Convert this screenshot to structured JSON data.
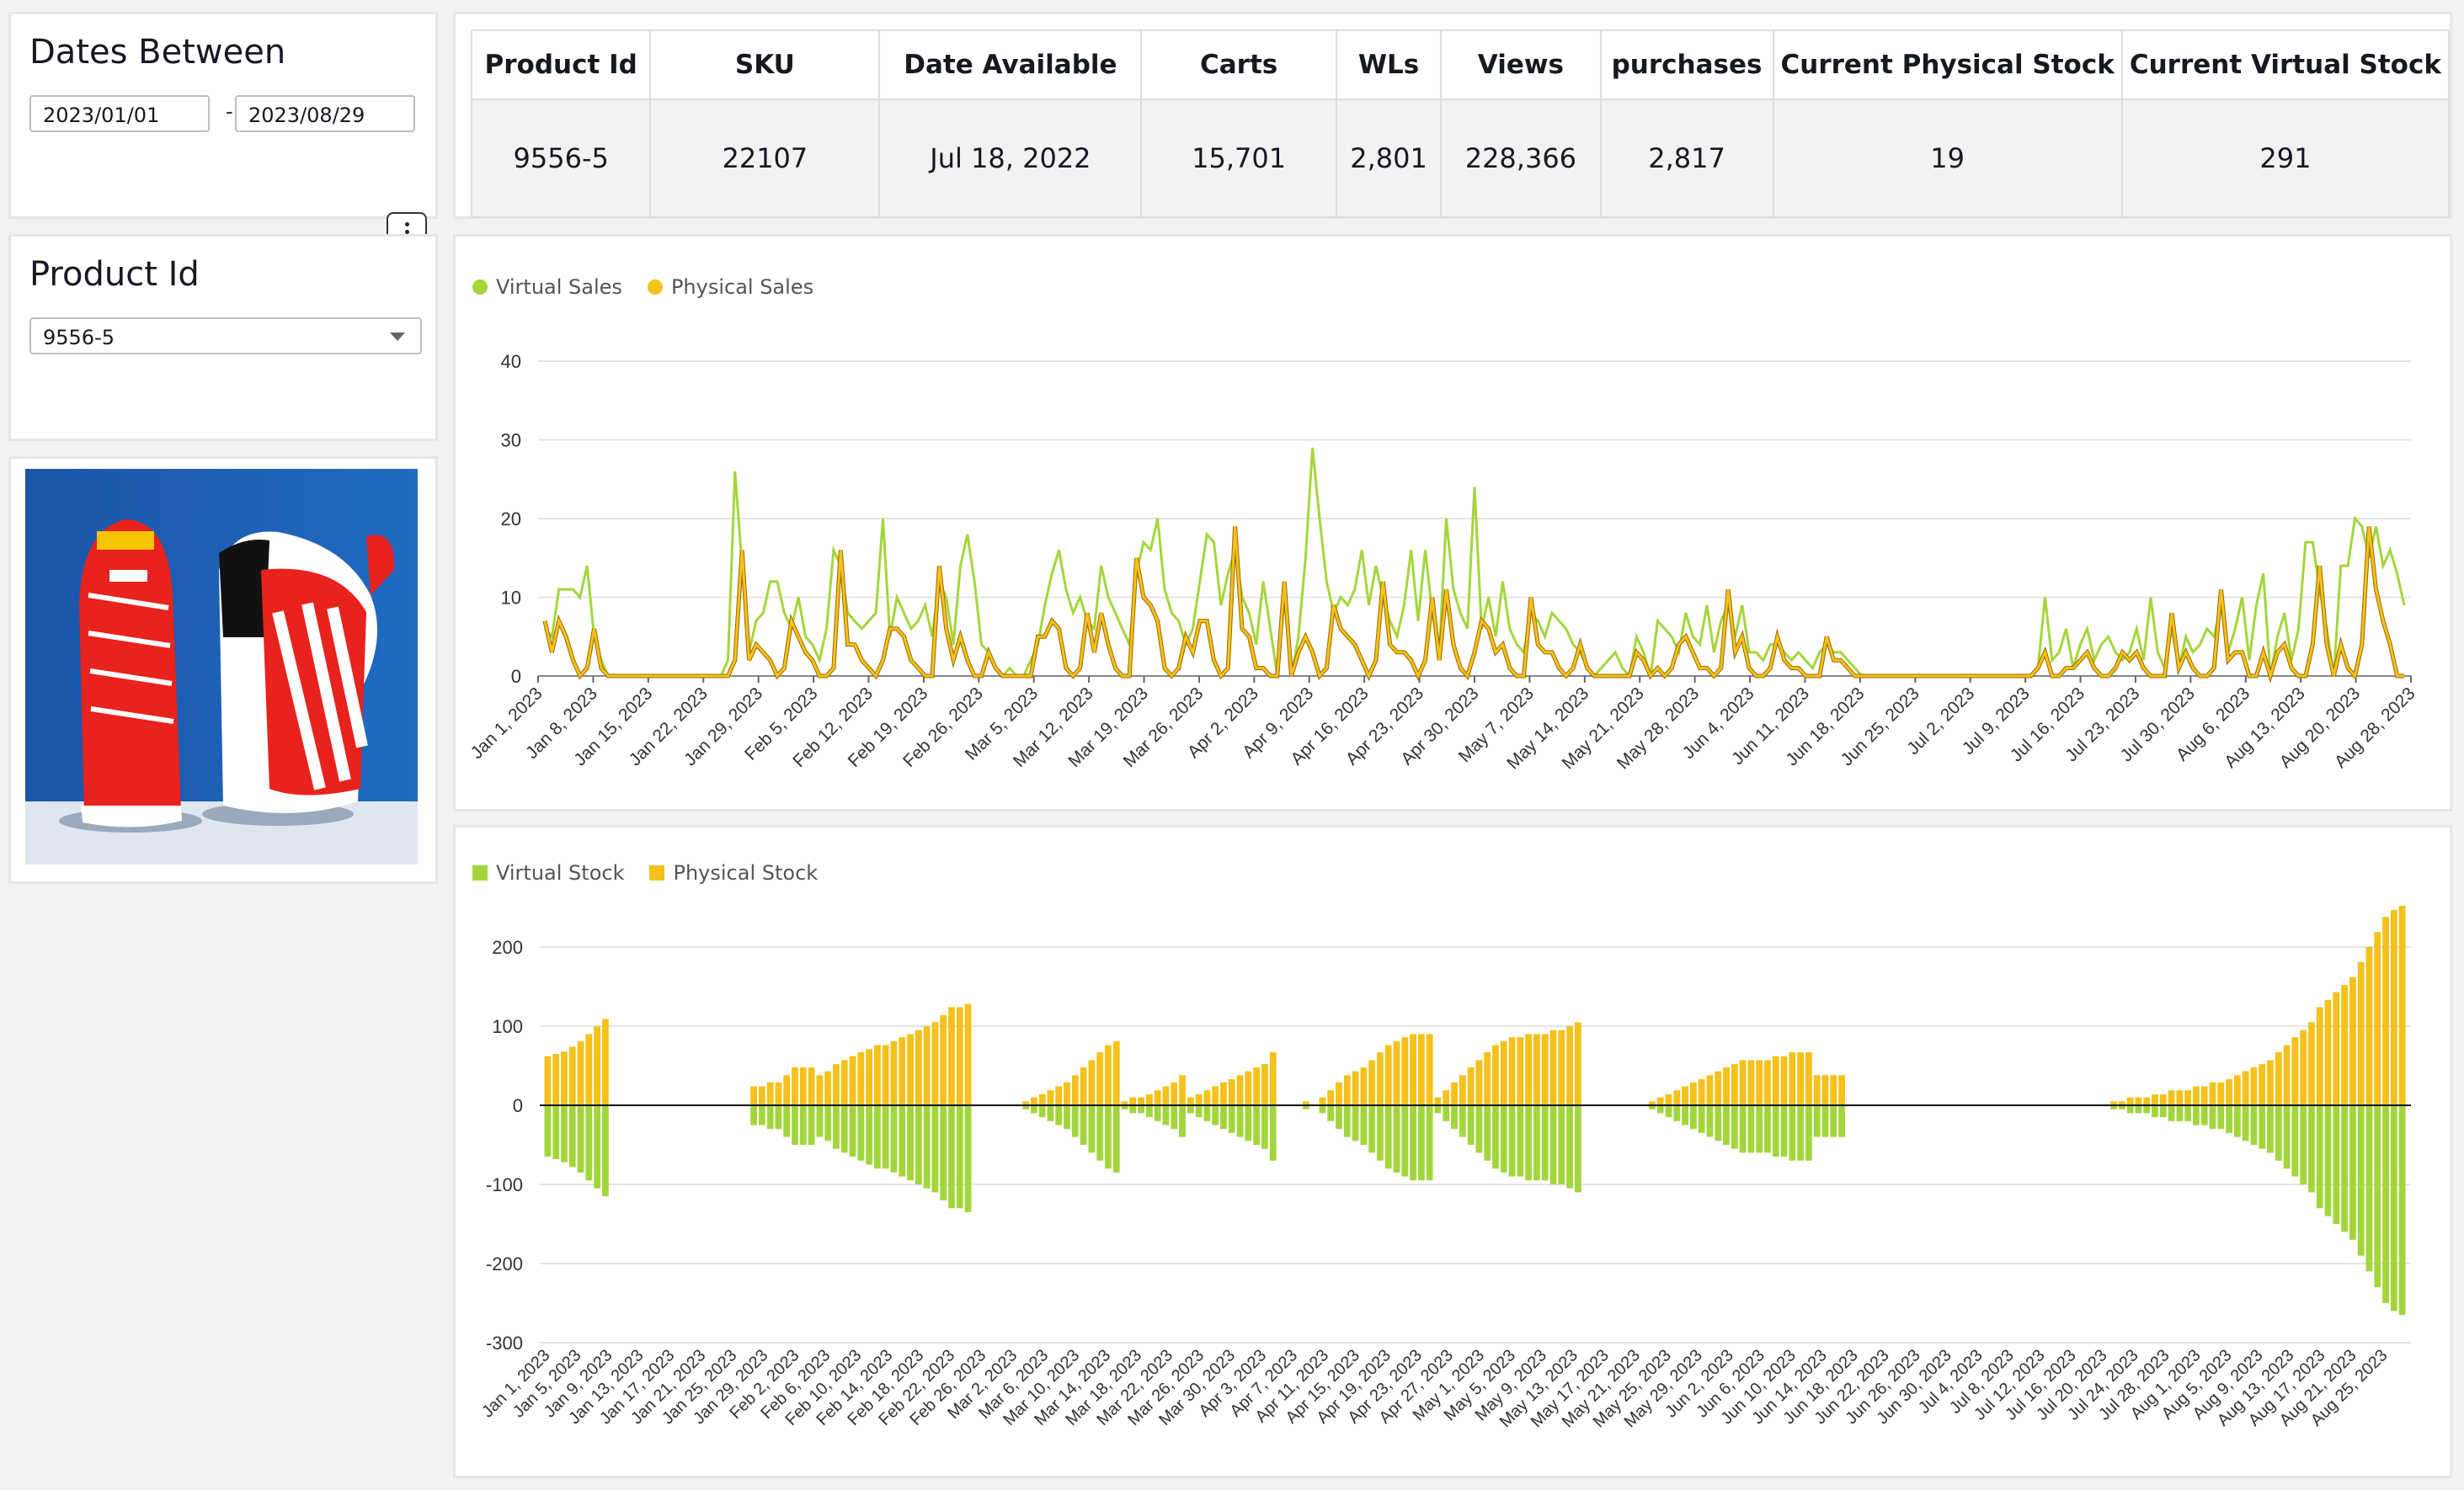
{
  "filters": {
    "dates": {
      "title": "Dates Between",
      "start": "2023/01/01",
      "separator": "-",
      "end": "2023/08/29"
    },
    "product": {
      "title": "Product Id",
      "selected": "9556-5"
    }
  },
  "kpi": {
    "headers": [
      "Product Id",
      "SKU",
      "Date Available",
      "Carts",
      "WLs",
      "Views",
      "purchases",
      "Current Physical Stock",
      "Current Virtual Stock"
    ],
    "values": [
      "9556-5",
      "22107",
      "Jul 18, 2022",
      "15,701",
      "2,801",
      "228,366",
      "2,817",
      "19",
      "291"
    ]
  },
  "colors": {
    "virtual": "#a4d63c",
    "physical": "#f5c11b"
  },
  "chart_data": [
    {
      "type": "line",
      "series_names": [
        "Virtual Sales",
        "Physical Sales"
      ],
      "ylim": [
        0,
        40
      ],
      "yticks": [
        "0",
        "10",
        "20",
        "30",
        "40"
      ],
      "xticks": [
        "Jan 1, 2023",
        "Jan 8, 2023",
        "Jan 15, 2023",
        "Jan 22, 2023",
        "Jan 29, 2023",
        "Feb 5, 2023",
        "Feb 12, 2023",
        "Feb 19, 2023",
        "Feb 26, 2023",
        "Mar 5, 2023",
        "Mar 12, 2023",
        "Mar 19, 2023",
        "Mar 26, 2023",
        "Apr 2, 2023",
        "Apr 9, 2023",
        "Apr 16, 2023",
        "Apr 23, 2023",
        "Apr 30, 2023",
        "May 7, 2023",
        "May 14, 2023",
        "May 21, 2023",
        "May 28, 2023",
        "Jun 4, 2023",
        "Jun 11, 2023",
        "Jun 18, 2023",
        "Jun 25, 2023",
        "Jul 2, 2023",
        "Jul 9, 2023",
        "Jul 16, 2023",
        "Jul 23, 2023",
        "Jul 30, 2023",
        "Aug 6, 2023",
        "Aug 13, 2023",
        "Aug 20, 2023",
        "Aug 28, 2023"
      ],
      "virtual": [
        6,
        5,
        11,
        11,
        11,
        10,
        14,
        5,
        2,
        0,
        0,
        0,
        0,
        0,
        0,
        0,
        0,
        0,
        0,
        0,
        0,
        0,
        0,
        0,
        0,
        0,
        2,
        26,
        14,
        3,
        7,
        8,
        12,
        12,
        8,
        6,
        10,
        5,
        4,
        2,
        6,
        16,
        14,
        8,
        7,
        6,
        7,
        8,
        20,
        5,
        10,
        8,
        6,
        7,
        9,
        5,
        12,
        10,
        4,
        14,
        18,
        12,
        4,
        3,
        1,
        0,
        1,
        0,
        0,
        2,
        4,
        9,
        13,
        16,
        11,
        8,
        10,
        7,
        6,
        14,
        10,
        8,
        6,
        4,
        13,
        17,
        16,
        20,
        11,
        8,
        7,
        4,
        6,
        12,
        18,
        17,
        9,
        13,
        16,
        10,
        8,
        4,
        12,
        6,
        0,
        10,
        0,
        5,
        15,
        29,
        20,
        12,
        8,
        10,
        9,
        11,
        16,
        9,
        14,
        10,
        7,
        5,
        9,
        16,
        7,
        16,
        8,
        3,
        20,
        11,
        8,
        6,
        24,
        6,
        10,
        5,
        12,
        6,
        4,
        3,
        8,
        7,
        5,
        8,
        7,
        6,
        4,
        3,
        1,
        0,
        1,
        2,
        3,
        1,
        0,
        5,
        3,
        0,
        7,
        6,
        5,
        3,
        8,
        5,
        4,
        9,
        3,
        7,
        9,
        5,
        9,
        3,
        3,
        2,
        4,
        4,
        3,
        2,
        3,
        2,
        1,
        3,
        4,
        3,
        3,
        2,
        1,
        0,
        0,
        0,
        0,
        0,
        0,
        0,
        0,
        0,
        0,
        0,
        0,
        0,
        0,
        0,
        0,
        0,
        0,
        0,
        0,
        0,
        0,
        0,
        0,
        0,
        1,
        10,
        2,
        3,
        6,
        1,
        4,
        6,
        2,
        4,
        5,
        3,
        2,
        3,
        6,
        2,
        10,
        3,
        1,
        6,
        1,
        5,
        3,
        4,
        6,
        5,
        9,
        3,
        6,
        10,
        2,
        9,
        13,
        0,
        5,
        8,
        2,
        6,
        17,
        17,
        11,
        6,
        0,
        14,
        14,
        20,
        19,
        15,
        19,
        14,
        16,
        13,
        9
      ]
    },
    {
      "type": "bar",
      "series_names": [
        "Virtual Stock",
        "Physical Stock"
      ],
      "ylim": [
        -300,
        200
      ],
      "yticks": [
        "-300",
        "-200",
        "-100",
        "0",
        "100",
        "200"
      ],
      "xticks": [
        "Jan 1, 2023",
        "Jan 5, 2023",
        "Jan 9, 2023",
        "Jan 13, 2023",
        "Jan 17, 2023",
        "Jan 21, 2023",
        "Jan 25, 2023",
        "Jan 29, 2023",
        "Feb 2, 2023",
        "Feb 6, 2023",
        "Feb 10, 2023",
        "Feb 14, 2023",
        "Feb 18, 2023",
        "Feb 22, 2023",
        "Feb 26, 2023",
        "Mar 2, 2023",
        "Mar 6, 2023",
        "Mar 10, 2023",
        "Mar 14, 2023",
        "Mar 18, 2023",
        "Mar 22, 2023",
        "Mar 26, 2023",
        "Mar 30, 2023",
        "Apr 3, 2023",
        "Apr 7, 2023",
        "Apr 11, 2023",
        "Apr 15, 2023",
        "Apr 19, 2023",
        "Apr 23, 2023",
        "Apr 27, 2023",
        "May 1, 2023",
        "May 5, 2023",
        "May 9, 2023",
        "May 13, 2023",
        "May 17, 2023",
        "May 21, 2023",
        "May 25, 2023",
        "May 29, 2023",
        "Jun 2, 2023",
        "Jun 6, 2023",
        "Jun 10, 2023",
        "Jun 14, 2023",
        "Jun 18, 2023",
        "Jun 22, 2023",
        "Jun 26, 2023",
        "Jun 30, 2023",
        "Jul 4, 2023",
        "Jul 8, 2023",
        "Jul 12, 2023",
        "Jul 16, 2023",
        "Jul 20, 2023",
        "Jul 24, 2023",
        "Jul 28, 2023",
        "Aug 1, 2023",
        "Aug 5, 2023",
        "Aug 9, 2023",
        "Aug 13, 2023",
        "Aug 17, 2023",
        "Aug 21, 2023",
        "Aug 25, 2023"
      ],
      "virtual_stock": [
        -65,
        -68,
        -72,
        -78,
        -85,
        -95,
        -105,
        -115,
        0,
        0,
        0,
        0,
        0,
        0,
        0,
        0,
        0,
        0,
        0,
        0,
        0,
        0,
        0,
        0,
        0,
        -25,
        -25,
        -30,
        -30,
        -40,
        -50,
        -50,
        -50,
        -40,
        -45,
        -55,
        -60,
        -65,
        -70,
        -75,
        -80,
        -80,
        -85,
        -90,
        -95,
        -100,
        -105,
        -110,
        -120,
        -130,
        -130,
        -135,
        0,
        0,
        0,
        0,
        0,
        0,
        -5,
        -10,
        -15,
        -20,
        -25,
        -30,
        -40,
        -50,
        -60,
        -70,
        -80,
        -85,
        -5,
        -10,
        -10,
        -15,
        -20,
        -25,
        -30,
        -40,
        -10,
        -15,
        -20,
        -25,
        -30,
        -35,
        -40,
        -45,
        -50,
        -55,
        -70,
        0,
        0,
        0,
        -5,
        0,
        -10,
        -20,
        -30,
        -40,
        -45,
        -50,
        -60,
        -70,
        -80,
        -85,
        -90,
        -95,
        -95,
        -95,
        -10,
        -20,
        -30,
        -40,
        -50,
        -60,
        -70,
        -80,
        -85,
        -90,
        -90,
        -95,
        -95,
        -95,
        -100,
        -100,
        -105,
        -110,
        0,
        0,
        0,
        0,
        0,
        0,
        0,
        0,
        -5,
        -10,
        -15,
        -20,
        -25,
        -30,
        -35,
        -40,
        -45,
        -50,
        -55,
        -60,
        -60,
        -60,
        -60,
        -65,
        -65,
        -70,
        -70,
        -70,
        -40,
        -40,
        -40,
        -40,
        0,
        0,
        0,
        0,
        0,
        0,
        0,
        0,
        0,
        0,
        0,
        0,
        0,
        0,
        0,
        0,
        0,
        0,
        0,
        0,
        0,
        0,
        0,
        0,
        0,
        0,
        0,
        0,
        0,
        0,
        0,
        0,
        -5,
        -5,
        -10,
        -10,
        -10,
        -15,
        -15,
        -20,
        -20,
        -20,
        -25,
        -25,
        -30,
        -30,
        -35,
        -40,
        -45,
        -50,
        -55,
        -60,
        -70,
        -80,
        -90,
        -100,
        -110,
        -130,
        -140,
        -150,
        -160,
        -170,
        -190,
        -210,
        -230,
        -250,
        -260,
        -265
      ]
    }
  ]
}
